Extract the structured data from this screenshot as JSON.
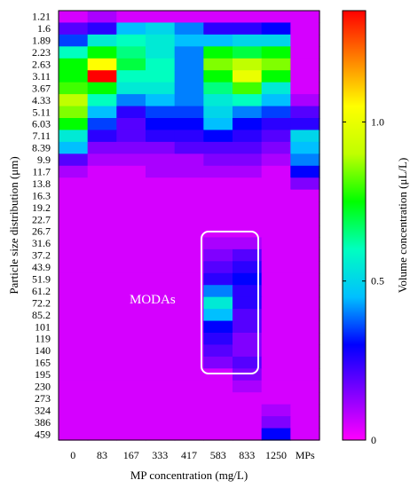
{
  "chart_data": {
    "type": "heatmap",
    "title": "",
    "xlabel": "MP concentration (mg/L)",
    "ylabel": "Particle size distribution (μm)",
    "colorbar_label": "Volume concentration (μL/L)",
    "colorbar_ticks": [
      "0",
      "0.5",
      "1.0"
    ],
    "colorbar_range": [
      0,
      1.35
    ],
    "colormap": [
      "#ff00ff",
      "#8000ff",
      "#0000ff",
      "#00c0ff",
      "#00ffc0",
      "#00ff00",
      "#c0ff00",
      "#ffff00",
      "#ff8000",
      "#ff0000"
    ],
    "x_categories": [
      "0",
      "83",
      "167",
      "333",
      "417",
      "583",
      "833",
      "1250",
      "MPs"
    ],
    "y_categories": [
      "1.21",
      "1.6",
      "1.89",
      "2.23",
      "2.63",
      "3.11",
      "3.67",
      "4.33",
      "5.11",
      "6.03",
      "7.11",
      "8.39",
      "9.9",
      "11.7",
      "13.8",
      "16.3",
      "19.2",
      "22.7",
      "26.7",
      "31.6",
      "37.2",
      "43.9",
      "51.9",
      "61.2",
      "72.2",
      "85.2",
      "101",
      "119",
      "140",
      "165",
      "195",
      "230",
      "273",
      "324",
      "386",
      "459"
    ],
    "values": [
      [
        0.05,
        0.1,
        0.05,
        0.05,
        0.05,
        0.05,
        0.05,
        0.05,
        0.05
      ],
      [
        0.2,
        0.25,
        0.45,
        0.5,
        0.4,
        0.25,
        0.25,
        0.3,
        0.05
      ],
      [
        0.35,
        0.55,
        0.6,
        0.55,
        0.45,
        0.45,
        0.5,
        0.5,
        0.05
      ],
      [
        0.6,
        0.75,
        0.65,
        0.55,
        0.4,
        0.75,
        0.7,
        0.75,
        0.05
      ],
      [
        0.75,
        1.05,
        0.7,
        0.6,
        0.4,
        0.85,
        0.9,
        0.85,
        0.05
      ],
      [
        0.75,
        1.35,
        0.6,
        0.6,
        0.4,
        0.75,
        1.0,
        0.75,
        0.05
      ],
      [
        0.8,
        0.75,
        0.55,
        0.55,
        0.4,
        0.65,
        0.8,
        0.55,
        0.05
      ],
      [
        0.9,
        0.6,
        0.4,
        0.45,
        0.4,
        0.55,
        0.6,
        0.45,
        0.1
      ],
      [
        0.85,
        0.45,
        0.25,
        0.35,
        0.35,
        0.5,
        0.4,
        0.35,
        0.2
      ],
      [
        0.75,
        0.35,
        0.2,
        0.3,
        0.3,
        0.45,
        0.3,
        0.25,
        0.25
      ],
      [
        0.55,
        0.25,
        0.2,
        0.25,
        0.25,
        0.3,
        0.25,
        0.2,
        0.5
      ],
      [
        0.45,
        0.15,
        0.15,
        0.15,
        0.2,
        0.2,
        0.2,
        0.15,
        0.45
      ],
      [
        0.2,
        0.1,
        0.1,
        0.1,
        0.1,
        0.15,
        0.15,
        0.1,
        0.4
      ],
      [
        0.1,
        0.05,
        0.05,
        0.1,
        0.1,
        0.1,
        0.1,
        0.05,
        0.3
      ],
      [
        0.05,
        0.05,
        0.05,
        0.05,
        0.05,
        0.05,
        0.05,
        0.05,
        0.15
      ],
      [
        0.05,
        0.05,
        0.05,
        0.05,
        0.05,
        0.05,
        0.05,
        0.05,
        0.05
      ],
      [
        0.05,
        0.05,
        0.05,
        0.05,
        0.05,
        0.05,
        0.05,
        0.05,
        0.05
      ],
      [
        0.05,
        0.05,
        0.05,
        0.05,
        0.05,
        0.05,
        0.05,
        0.05,
        0.05
      ],
      [
        0.05,
        0.05,
        0.05,
        0.05,
        0.05,
        0.05,
        0.05,
        0.05,
        0.05
      ],
      [
        0.05,
        0.05,
        0.05,
        0.05,
        0.05,
        0.1,
        0.1,
        0.05,
        0.05
      ],
      [
        0.05,
        0.05,
        0.05,
        0.05,
        0.05,
        0.15,
        0.2,
        0.05,
        0.05
      ],
      [
        0.05,
        0.05,
        0.05,
        0.05,
        0.05,
        0.2,
        0.25,
        0.05,
        0.05
      ],
      [
        0.05,
        0.05,
        0.05,
        0.05,
        0.05,
        0.25,
        0.3,
        0.05,
        0.05
      ],
      [
        0.05,
        0.05,
        0.05,
        0.05,
        0.05,
        0.4,
        0.25,
        0.05,
        0.05
      ],
      [
        0.05,
        0.05,
        0.05,
        0.05,
        0.05,
        0.55,
        0.25,
        0.05,
        0.05
      ],
      [
        0.05,
        0.05,
        0.05,
        0.05,
        0.05,
        0.45,
        0.2,
        0.05,
        0.05
      ],
      [
        0.05,
        0.05,
        0.05,
        0.05,
        0.05,
        0.3,
        0.2,
        0.05,
        0.05
      ],
      [
        0.05,
        0.05,
        0.05,
        0.05,
        0.05,
        0.25,
        0.15,
        0.05,
        0.05
      ],
      [
        0.05,
        0.05,
        0.05,
        0.05,
        0.05,
        0.2,
        0.15,
        0.05,
        0.05
      ],
      [
        0.05,
        0.05,
        0.05,
        0.05,
        0.05,
        0.15,
        0.2,
        0.05,
        0.05
      ],
      [
        0.05,
        0.05,
        0.05,
        0.05,
        0.05,
        0.05,
        0.15,
        0.05,
        0.05
      ],
      [
        0.05,
        0.05,
        0.05,
        0.05,
        0.05,
        0.05,
        0.1,
        0.05,
        0.05
      ],
      [
        0.05,
        0.05,
        0.05,
        0.05,
        0.05,
        0.05,
        0.05,
        0.05,
        0.05
      ],
      [
        0.05,
        0.05,
        0.05,
        0.05,
        0.05,
        0.05,
        0.05,
        0.1,
        0.05
      ],
      [
        0.05,
        0.05,
        0.05,
        0.05,
        0.05,
        0.05,
        0.05,
        0.15,
        0.05
      ],
      [
        0.05,
        0.05,
        0.05,
        0.05,
        0.05,
        0.05,
        0.05,
        0.3,
        0.05
      ]
    ],
    "annotations": [
      {
        "text": "MODAs",
        "color": "#ffffff"
      }
    ],
    "grid": false,
    "legend": "colorbar right"
  }
}
